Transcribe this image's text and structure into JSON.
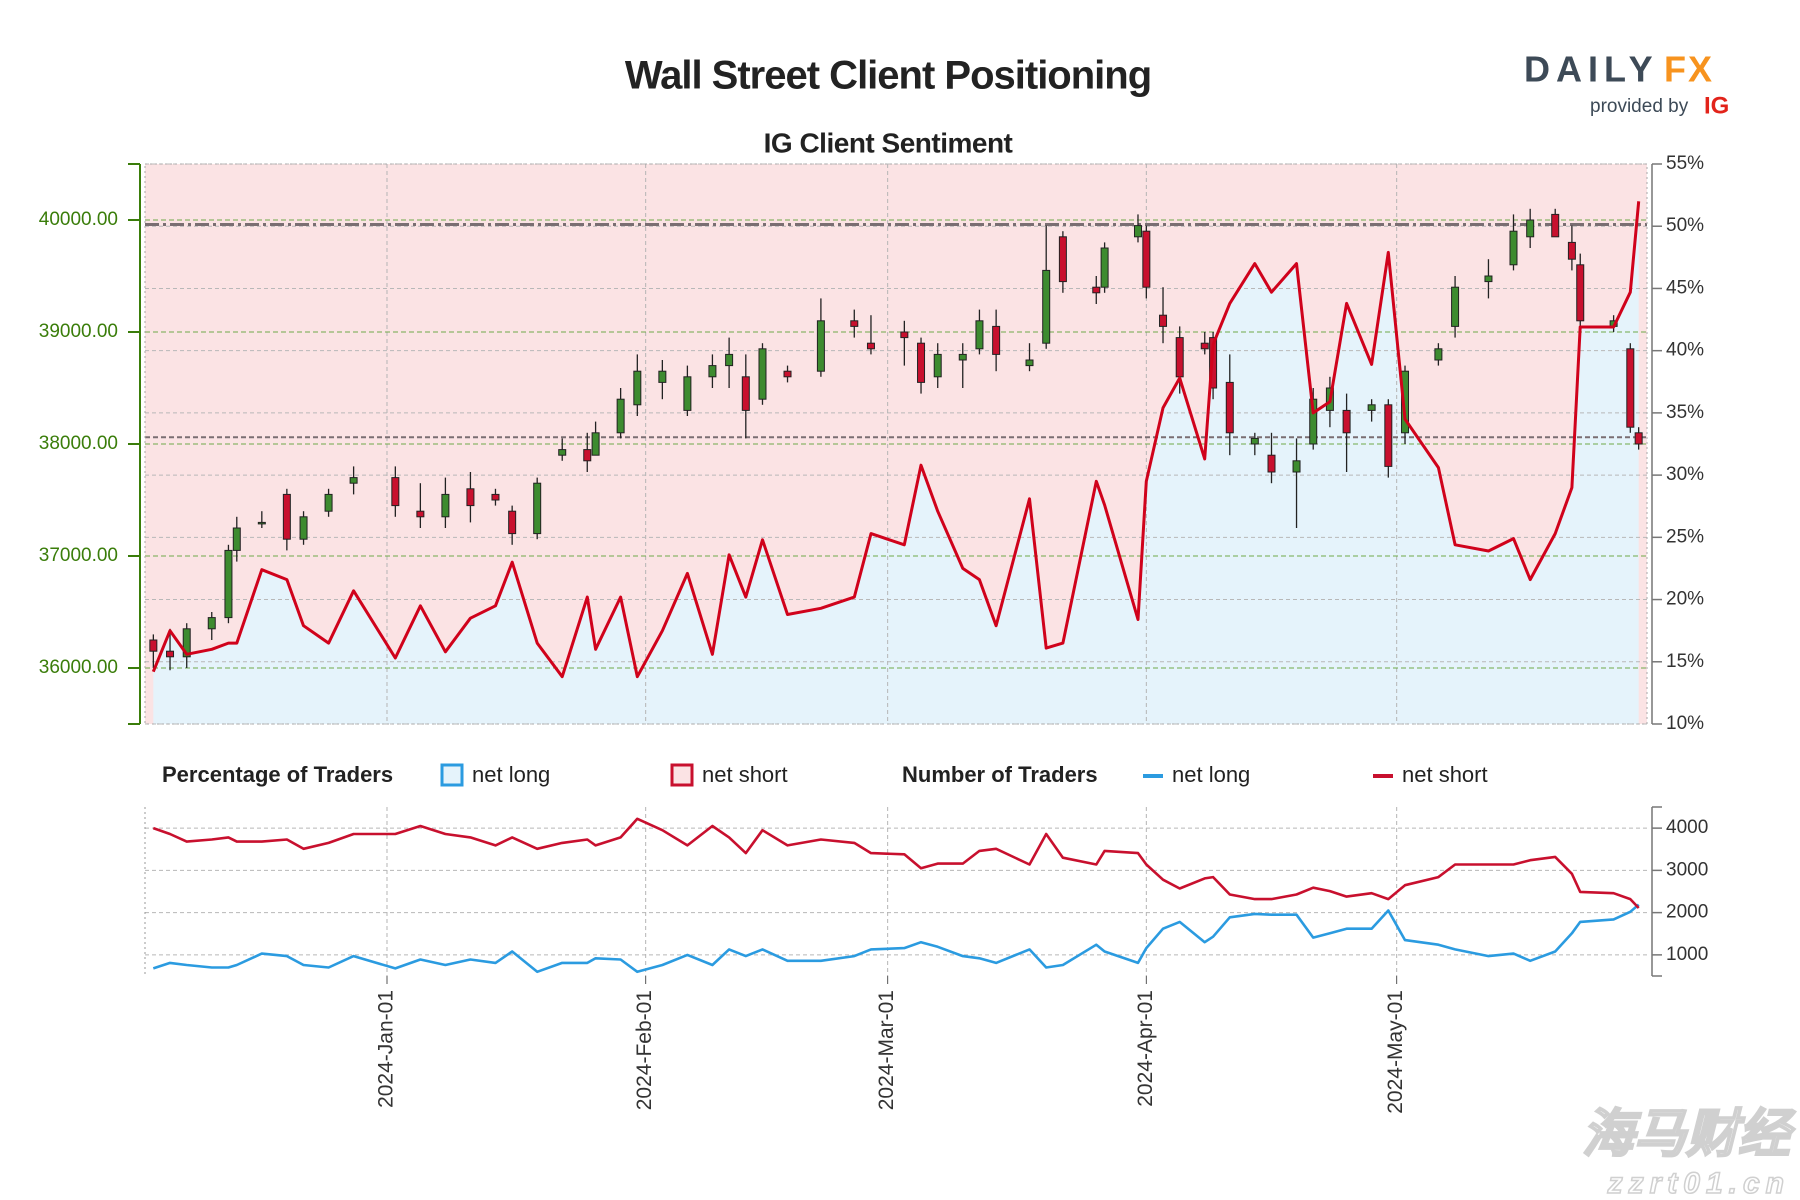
{
  "header": {
    "title": "Wall Street Client Positioning",
    "logo_left": "DAILY",
    "logo_right": "FX",
    "provided": "provided by",
    "provider": "IG"
  },
  "watermark": {
    "line1": "海马财经",
    "line2": "zzrt01.cn"
  },
  "legend": {
    "percentage_title": "Percentage of Traders",
    "percentage_items": [
      {
        "name": "net long",
        "color": "#2b9be0"
      },
      {
        "name": "net short",
        "color": "#c8102e"
      }
    ],
    "number_title": "Number of Traders"
  },
  "chart_data": [
    {
      "type": "candlestick",
      "subtitle": "IG Client Sentiment",
      "x": [
        "2023-12-04",
        "2023-12-06",
        "2023-12-08",
        "2023-12-11",
        "2023-12-13",
        "2023-12-14",
        "2023-12-17",
        "2023-12-20",
        "2023-12-22",
        "2023-12-25",
        "2023-12-28",
        "2024-01-02",
        "2024-01-05",
        "2024-01-08",
        "2024-01-11",
        "2024-01-14",
        "2024-01-16",
        "2024-01-19",
        "2024-01-22",
        "2024-01-25",
        "2024-01-26",
        "2024-01-29",
        "2024-01-31",
        "2024-02-03",
        "2024-02-06",
        "2024-02-09",
        "2024-02-11",
        "2024-02-13",
        "2024-02-15",
        "2024-02-18",
        "2024-02-22",
        "2024-02-26",
        "2024-02-28",
        "2024-03-03",
        "2024-03-05",
        "2024-03-07",
        "2024-03-10",
        "2024-03-12",
        "2024-03-14",
        "2024-03-18",
        "2024-03-20",
        "2024-03-22",
        "2024-03-26",
        "2024-03-27",
        "2024-03-31",
        "2024-04-01",
        "2024-04-03",
        "2024-04-05",
        "2024-04-08",
        "2024-04-09",
        "2024-04-11",
        "2024-04-14",
        "2024-04-16",
        "2024-04-19",
        "2024-04-21",
        "2024-04-23",
        "2024-04-25",
        "2024-04-28",
        "2024-04-30",
        "2024-05-02",
        "2024-05-06",
        "2024-05-08",
        "2024-05-12",
        "2024-05-15",
        "2024-05-17",
        "2024-05-20",
        "2024-05-22",
        "2024-05-23",
        "2024-05-27",
        "2024-05-29",
        "2024-05-30"
      ],
      "open": [
        36250,
        36150,
        36100,
        36350,
        36450,
        37050,
        37300,
        37550,
        37150,
        37400,
        37650,
        37700,
        37400,
        37350,
        37600,
        37550,
        37400,
        37200,
        37900,
        37950,
        37900,
        38100,
        38350,
        38550,
        38300,
        38600,
        38700,
        38600,
        38400,
        38650,
        38650,
        39100,
        38900,
        39000,
        38900,
        38600,
        38750,
        38850,
        39050,
        38700,
        38900,
        39850,
        39400,
        39400,
        39850,
        39900,
        39150,
        38950,
        38900,
        38950,
        38550,
        38000,
        37900,
        37750,
        38000,
        38300,
        38300,
        38300,
        38350,
        38100,
        38750,
        39050,
        39450,
        39600,
        39850,
        40050,
        39800,
        39600,
        39050,
        38850,
        38100
      ],
      "high": [
        36300,
        36350,
        36400,
        36500,
        37100,
        37350,
        37400,
        37600,
        37400,
        37600,
        37800,
        37800,
        37650,
        37700,
        37750,
        37600,
        37450,
        37700,
        38050,
        38100,
        38200,
        38500,
        38800,
        38750,
        38700,
        38800,
        38950,
        38800,
        38900,
        38700,
        39300,
        39200,
        39150,
        39100,
        38950,
        38900,
        38900,
        39200,
        39200,
        38900,
        39950,
        39900,
        39500,
        39800,
        40050,
        39950,
        39400,
        39050,
        39000,
        39000,
        38800,
        38100,
        38100,
        38050,
        38500,
        38600,
        38450,
        38400,
        38400,
        38700,
        38900,
        39500,
        39650,
        40050,
        40100,
        40100,
        39950,
        39700,
        39150,
        38900,
        38150
      ],
      "low": [
        36000,
        35980,
        36000,
        36250,
        36400,
        36950,
        37250,
        37050,
        37100,
        37350,
        37550,
        37350,
        37250,
        37250,
        37300,
        37450,
        37100,
        37150,
        37850,
        37750,
        37900,
        38050,
        38250,
        38400,
        38250,
        38500,
        38500,
        38050,
        38350,
        38550,
        38600,
        38950,
        38800,
        38700,
        38450,
        38500,
        38500,
        38800,
        38650,
        38650,
        38850,
        39350,
        39250,
        39350,
        39800,
        39300,
        38900,
        38450,
        38800,
        38400,
        37900,
        37900,
        37650,
        37250,
        37950,
        38150,
        37750,
        38200,
        37700,
        38000,
        38700,
        38950,
        39300,
        39550,
        39750,
        39850,
        39550,
        38950,
        39000,
        38100,
        37950
      ],
      "close": [
        36150,
        36100,
        36350,
        36450,
        37050,
        37250,
        37300,
        37150,
        37350,
        37550,
        37700,
        37450,
        37350,
        37550,
        37450,
        37500,
        37200,
        37650,
        37950,
        37850,
        38100,
        38400,
        38650,
        38650,
        38600,
        38700,
        38800,
        38300,
        38850,
        38600,
        39100,
        39050,
        38850,
        38950,
        38550,
        38800,
        38800,
        39100,
        38800,
        38750,
        39550,
        39450,
        39350,
        39750,
        39950,
        39400,
        39050,
        38600,
        38850,
        38500,
        38100,
        38050,
        37750,
        37850,
        38400,
        38500,
        38100,
        38350,
        37800,
        38650,
        38850,
        39400,
        39500,
        39900,
        40000,
        39850,
        39650,
        39100,
        39100,
        38150,
        38000
      ],
      "up_color": "#3d8b2f",
      "down_color": "#c8102e",
      "axis_color": "#3a7d0a",
      "series": [
        {
          "name": "net long",
          "color": "#d0021b",
          "fill_below": "#e5f3fb",
          "fill_above": "#fbe3e4",
          "axis": "y2",
          "values": [
            14.2,
            17.5,
            15.6,
            16,
            16.5,
            16.5,
            22.4,
            21.6,
            17.9,
            16.5,
            20.7,
            15.3,
            19.5,
            15.8,
            18.5,
            19.5,
            23,
            16.5,
            13.8,
            20.2,
            16,
            20.2,
            13.8,
            17.5,
            22.1,
            15.6,
            23.6,
            20.2,
            24.8,
            18.8,
            19.3,
            20.2,
            25.3,
            24.4,
            30.8,
            27.1,
            22.5,
            21.6,
            17.9,
            28.1,
            16.1,
            16.5,
            29.5,
            27.6,
            18.4,
            29.5,
            35.4,
            37.8,
            31.3,
            40.5,
            43.8,
            47,
            44.7,
            47,
            35,
            35.9,
            43.8,
            38.9,
            47.9,
            34.5,
            30.6,
            24.4,
            23.9,
            24.9,
            21.6,
            25.3,
            29,
            41.9,
            41.9,
            44.7,
            52
          ]
        }
      ],
      "reference_lines": [
        39960,
        38060
      ],
      "xlim": [
        "2023-12-03",
        "2024-05-31"
      ],
      "xticks": [
        {
          "value": "2024-01-01",
          "label": "2024-Jan-01"
        },
        {
          "value": "2024-02-01",
          "label": "2024-Feb-01"
        },
        {
          "value": "2024-03-01",
          "label": "2024-Mar-01"
        },
        {
          "value": "2024-04-01",
          "label": "2024-Apr-01"
        },
        {
          "value": "2024-05-01",
          "label": "2024-May-01"
        }
      ],
      "ylim": [
        35500,
        40500
      ],
      "yticks": [
        {
          "value": 36000,
          "label": "36000.00"
        },
        {
          "value": 37000,
          "label": "37000.00"
        },
        {
          "value": 38000,
          "label": "38000.00"
        },
        {
          "value": 39000,
          "label": "39000.00"
        },
        {
          "value": 40000,
          "label": "40000.00"
        }
      ],
      "y2lim": [
        10,
        55
      ],
      "y2ticks": [
        {
          "value": 10,
          "label": "10%"
        },
        {
          "value": 15,
          "label": "15%"
        },
        {
          "value": 20,
          "label": "20%"
        },
        {
          "value": 25,
          "label": "25%"
        },
        {
          "value": 30,
          "label": "30%"
        },
        {
          "value": 35,
          "label": "35%"
        },
        {
          "value": 40,
          "label": "40%"
        },
        {
          "value": 45,
          "label": "45%"
        },
        {
          "value": 50,
          "label": "50%"
        },
        {
          "value": 55,
          "label": "55%"
        }
      ],
      "grid": true
    },
    {
      "type": "line",
      "x": [
        "2023-12-04",
        "2023-12-06",
        "2023-12-08",
        "2023-12-11",
        "2023-12-13",
        "2023-12-14",
        "2023-12-17",
        "2023-12-20",
        "2023-12-22",
        "2023-12-25",
        "2023-12-28",
        "2024-01-02",
        "2024-01-05",
        "2024-01-08",
        "2024-01-11",
        "2024-01-14",
        "2024-01-16",
        "2024-01-19",
        "2024-01-22",
        "2024-01-25",
        "2024-01-26",
        "2024-01-29",
        "2024-01-31",
        "2024-02-03",
        "2024-02-06",
        "2024-02-09",
        "2024-02-11",
        "2024-02-13",
        "2024-02-15",
        "2024-02-18",
        "2024-02-22",
        "2024-02-26",
        "2024-02-28",
        "2024-03-03",
        "2024-03-05",
        "2024-03-07",
        "2024-03-10",
        "2024-03-12",
        "2024-03-14",
        "2024-03-18",
        "2024-03-20",
        "2024-03-22",
        "2024-03-26",
        "2024-03-27",
        "2024-03-31",
        "2024-04-01",
        "2024-04-03",
        "2024-04-05",
        "2024-04-08",
        "2024-04-09",
        "2024-04-11",
        "2024-04-14",
        "2024-04-16",
        "2024-04-19",
        "2024-04-21",
        "2024-04-23",
        "2024-04-25",
        "2024-04-28",
        "2024-04-30",
        "2024-05-02",
        "2024-05-06",
        "2024-05-08",
        "2024-05-12",
        "2024-05-15",
        "2024-05-17",
        "2024-05-20",
        "2024-05-22",
        "2024-05-23",
        "2024-05-27",
        "2024-05-29",
        "2024-05-30"
      ],
      "series": [
        {
          "name": "net long",
          "color": "#2b9be0",
          "values": [
            680,
            810,
            760,
            700,
            700,
            760,
            1030,
            970,
            760,
            700,
            970,
            680,
            890,
            760,
            890,
            810,
            1080,
            600,
            810,
            810,
            920,
            890,
            600,
            760,
            1000,
            760,
            1130,
            970,
            1130,
            860,
            860,
            970,
            1130,
            1160,
            1300,
            1190,
            970,
            920,
            810,
            1130,
            700,
            760,
            1240,
            1080,
            810,
            1160,
            1620,
            1780,
            1300,
            1430,
            1890,
            1970,
            1950,
            1950,
            1410,
            1510,
            1620,
            1620,
            2050,
            1350,
            1240,
            1130,
            970,
            1030,
            860,
            1080,
            1510,
            1780,
            1840,
            2020,
            2190
          ]
        },
        {
          "name": "net short",
          "color": "#c8102e",
          "values": [
            4000,
            3860,
            3680,
            3730,
            3780,
            3680,
            3680,
            3730,
            3510,
            3650,
            3860,
            3860,
            4050,
            3860,
            3780,
            3590,
            3780,
            3510,
            3650,
            3730,
            3590,
            3780,
            4220,
            3950,
            3590,
            4050,
            3780,
            3410,
            3950,
            3590,
            3730,
            3650,
            3410,
            3380,
            3050,
            3160,
            3160,
            3460,
            3510,
            3140,
            3860,
            3300,
            3140,
            3460,
            3410,
            3140,
            2780,
            2570,
            2810,
            2840,
            2430,
            2320,
            2320,
            2430,
            2590,
            2510,
            2380,
            2460,
            2320,
            2650,
            2840,
            3140,
            3140,
            3140,
            3240,
            3320,
            2920,
            2490,
            2460,
            2320,
            2110
          ]
        }
      ],
      "xlim": [
        "2023-12-03",
        "2024-05-31"
      ],
      "xticks": [
        {
          "value": "2024-01-01",
          "label": "2024-Jan-01"
        },
        {
          "value": "2024-02-01",
          "label": "2024-Feb-01"
        },
        {
          "value": "2024-03-01",
          "label": "2024-Mar-01"
        },
        {
          "value": "2024-04-01",
          "label": "2024-Apr-01"
        },
        {
          "value": "2024-05-01",
          "label": "2024-May-01"
        }
      ],
      "ylim": [
        500,
        4500
      ],
      "yticks": [
        1000,
        2000,
        3000,
        4000
      ],
      "grid": true
    }
  ]
}
